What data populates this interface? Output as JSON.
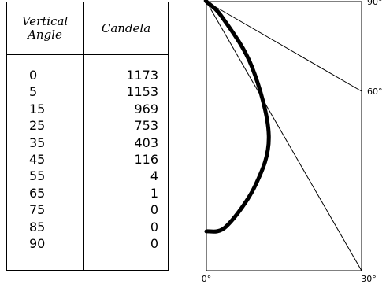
{
  "table": {
    "header_angle": [
      "Vertical",
      "Angle"
    ],
    "header_candela": "Candela",
    "rows": [
      {
        "angle": "0",
        "candela": "1173"
      },
      {
        "angle": "5",
        "candela": "1153"
      },
      {
        "angle": "15",
        "candela": "969"
      },
      {
        "angle": "25",
        "candela": "753"
      },
      {
        "angle": "35",
        "candela": "403"
      },
      {
        "angle": "45",
        "candela": "116"
      },
      {
        "angle": "55",
        "candela": "4"
      },
      {
        "angle": "65",
        "candela": "1"
      },
      {
        "angle": "75",
        "candela": "0"
      },
      {
        "angle": "85",
        "candela": "0"
      },
      {
        "angle": "90",
        "candela": "0"
      }
    ]
  },
  "chart_data": {
    "type": "line",
    "title": "",
    "xlabel": "",
    "ylabel": "",
    "x": [
      0,
      5,
      15,
      25,
      35,
      45,
      55,
      65,
      75,
      85,
      90
    ],
    "series": [
      {
        "values": [
          1173,
          1153,
          969,
          753,
          403,
          116,
          4,
          1,
          0,
          0,
          0
        ]
      }
    ],
    "tick_labels": {
      "bottom_left": "0°",
      "bottom_right": "30°",
      "right_middle": "60°",
      "right_top": "90°"
    },
    "grid": false,
    "legend": "none",
    "line_color": "#000000"
  }
}
